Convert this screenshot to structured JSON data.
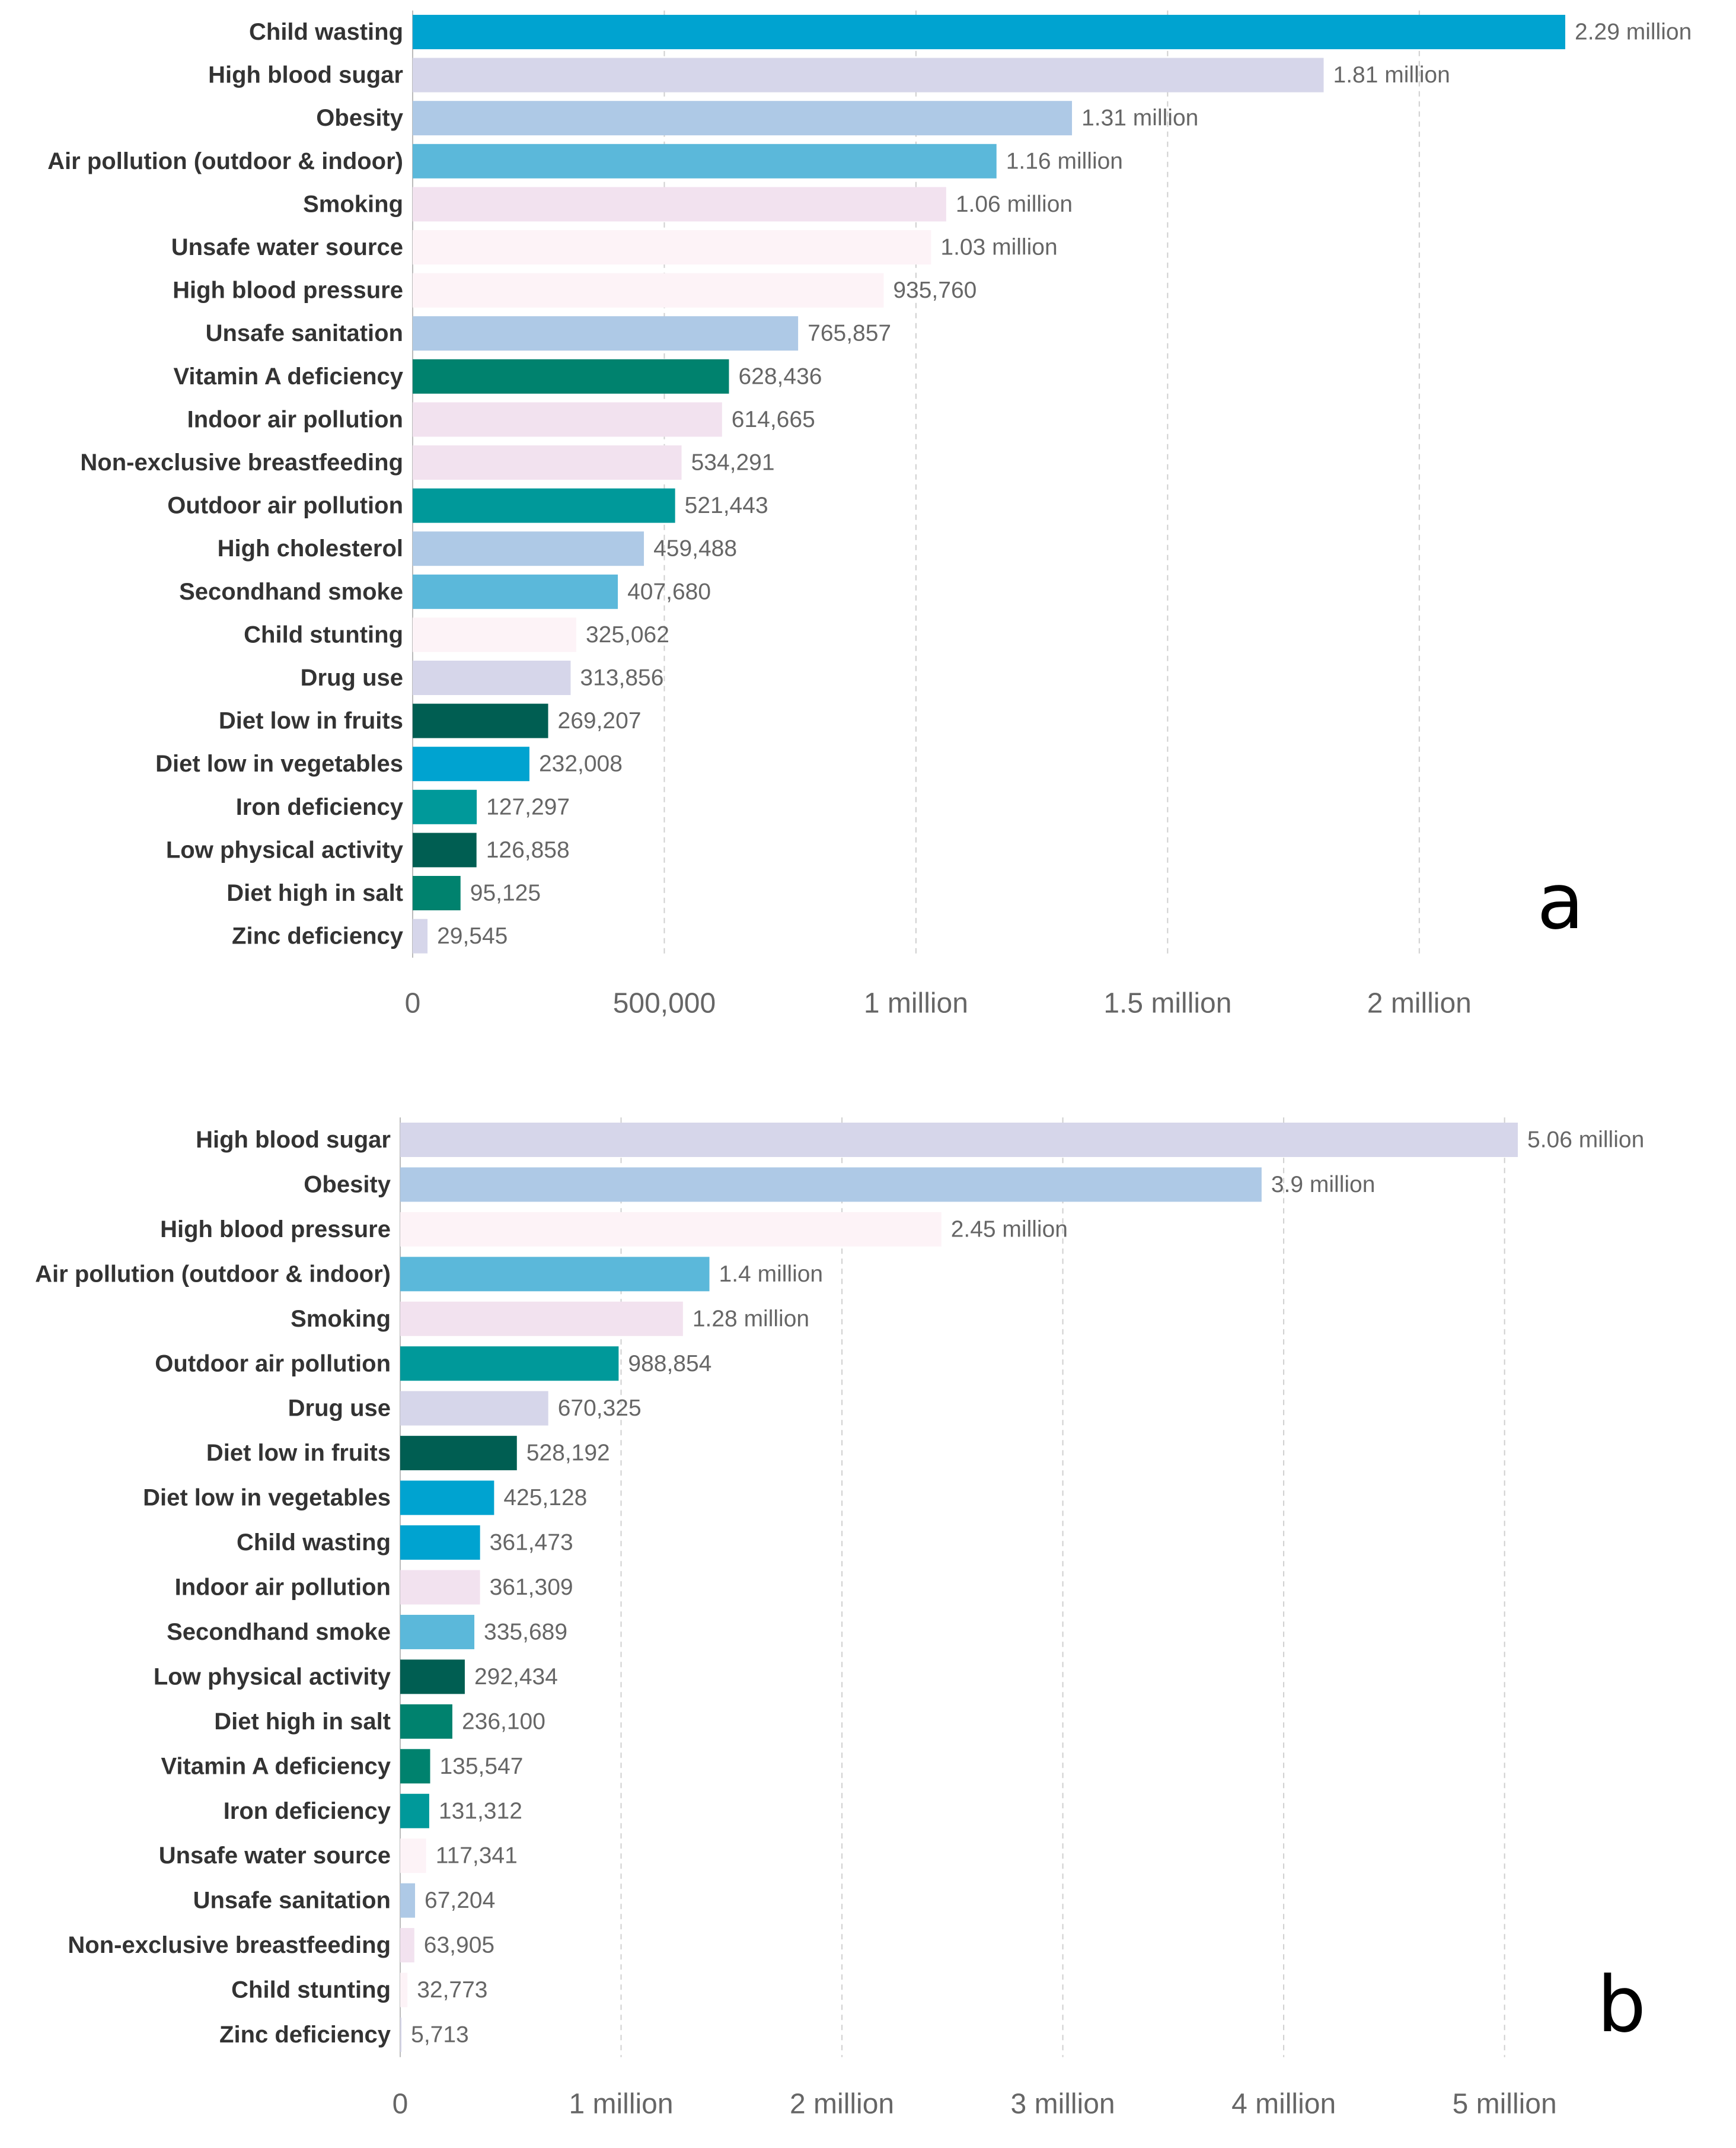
{
  "chart_data": [
    {
      "type": "bar",
      "orientation": "horizontal",
      "panel_label": "a",
      "xlim": [
        0,
        2290000
      ],
      "xticks": [
        0,
        500000,
        1000000,
        1500000,
        2000000
      ],
      "xtick_labels": [
        "0",
        "500,000",
        "1 million",
        "1.5 million",
        "2 million"
      ],
      "grid": true,
      "categories": [
        "Child wasting",
        "High blood sugar",
        "Obesity",
        "Air pollution (outdoor & indoor)",
        "Smoking",
        "Unsafe water source",
        "High blood pressure",
        "Unsafe sanitation",
        "Vitamin A deficiency",
        "Indoor air pollution",
        "Non-exclusive breastfeeding",
        "Outdoor air pollution",
        "High cholesterol",
        "Secondhand smoke",
        "Child stunting",
        "Drug use",
        "Diet low in fruits",
        "Diet low in vegetables",
        "Iron deficiency",
        "Low physical activity",
        "Diet high in salt",
        "Zinc deficiency"
      ],
      "values": [
        2290000,
        1810000,
        1310000,
        1160000,
        1060000,
        1030000,
        935760,
        765857,
        628436,
        614665,
        534291,
        521443,
        459488,
        407680,
        325062,
        313856,
        269207,
        232008,
        127297,
        126858,
        95125,
        29545
      ],
      "value_labels": [
        "2.29 million",
        "1.81 million",
        "1.31 million",
        "1.16 million",
        "1.06 million",
        "1.03 million",
        "935,760",
        "765,857",
        "628,436",
        "614,665",
        "534,291",
        "521,443",
        "459,488",
        "407,680",
        "325,062",
        "313,856",
        "269,207",
        "232,008",
        "127,297",
        "126,858",
        "95,125",
        "29,545"
      ],
      "colors": [
        "#00a3d0",
        "#d6d6ea",
        "#aec9e6",
        "#5bb8da",
        "#f2e2ef",
        "#fdf3f7",
        "#fdf3f7",
        "#aec9e6",
        "#00826e",
        "#f2e2ef",
        "#f2e2ef",
        "#00999a",
        "#aec9e6",
        "#5bb8da",
        "#fdf3f7",
        "#d6d6ea",
        "#005e52",
        "#00a3d0",
        "#00999a",
        "#005e52",
        "#00826e",
        "#d6d6ea"
      ]
    },
    {
      "type": "bar",
      "orientation": "horizontal",
      "panel_label": "b",
      "xlim": [
        0,
        5060000
      ],
      "xticks": [
        0,
        1000000,
        2000000,
        3000000,
        4000000,
        5000000
      ],
      "xtick_labels": [
        "0",
        "1 million",
        "2 million",
        "3 million",
        "4 million",
        "5 million"
      ],
      "grid": true,
      "categories": [
        "High blood sugar",
        "Obesity",
        "High blood pressure",
        "Air pollution (outdoor & indoor)",
        "Smoking",
        "Outdoor air pollution",
        "Drug use",
        "Diet low in fruits",
        "Diet low in vegetables",
        "Child wasting",
        "Indoor air pollution",
        "Secondhand smoke",
        "Low physical activity",
        "Diet high in salt",
        "Vitamin A deficiency",
        "Iron deficiency",
        "Unsafe water source",
        "Unsafe sanitation",
        "Non-exclusive breastfeeding",
        "Child stunting",
        "Zinc deficiency"
      ],
      "values": [
        5060000,
        3900000,
        2450000,
        1400000,
        1280000,
        988854,
        670325,
        528192,
        425128,
        361473,
        361309,
        335689,
        292434,
        236100,
        135547,
        131312,
        117341,
        67204,
        63905,
        32773,
        5713
      ],
      "value_labels": [
        "5.06 million",
        "3.9 million",
        "2.45 million",
        "1.4 million",
        "1.28 million",
        "988,854",
        "670,325",
        "528,192",
        "425,128",
        "361,473",
        "361,309",
        "335,689",
        "292,434",
        "236,100",
        "135,547",
        "131,312",
        "117,341",
        "67,204",
        "63,905",
        "32,773",
        "5,713"
      ],
      "colors": [
        "#d6d6ea",
        "#aec9e6",
        "#fdf3f7",
        "#5bb8da",
        "#f2e2ef",
        "#00999a",
        "#d6d6ea",
        "#005e52",
        "#00a3d0",
        "#00a3d0",
        "#f2e2ef",
        "#5bb8da",
        "#005e52",
        "#00826e",
        "#00826e",
        "#00999a",
        "#fdf3f7",
        "#aec9e6",
        "#f2e2ef",
        "#fdf3f7",
        "#d6d6ea"
      ]
    }
  ]
}
